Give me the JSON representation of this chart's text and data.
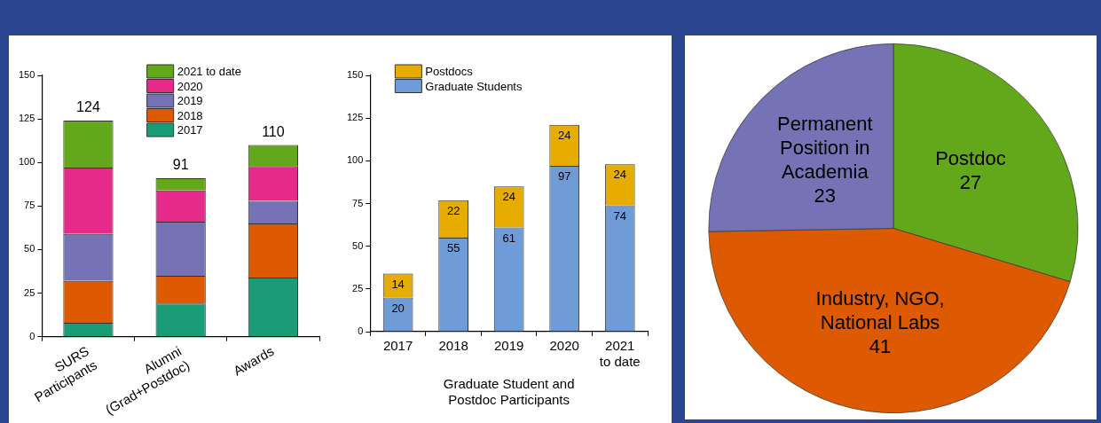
{
  "chart_data": [
    {
      "type": "bar",
      "stacked": true,
      "categories": [
        "SURS\nParticipants",
        "Alumni\n(Grad+Postdoc)",
        "Awards"
      ],
      "series": [
        {
          "name": "2017",
          "color": "#1a9c77",
          "values": [
            8,
            19,
            34
          ]
        },
        {
          "name": "2018",
          "color": "#dd5a00",
          "values": [
            24,
            16,
            31
          ]
        },
        {
          "name": "2019",
          "color": "#7573b5",
          "values": [
            27,
            31,
            13
          ]
        },
        {
          "name": "2020",
          "color": "#e52a8a",
          "values": [
            38,
            18,
            20
          ]
        },
        {
          "name": "2021 to date",
          "color": "#62a81a",
          "values": [
            27,
            7,
            12
          ]
        }
      ],
      "totals": [
        "124",
        "91",
        "110"
      ],
      "ylim": [
        0,
        150
      ],
      "yticks": [
        0,
        25,
        50,
        75,
        100,
        125,
        150
      ],
      "grid": false,
      "legend": "top"
    },
    {
      "type": "bar",
      "stacked": true,
      "categories": [
        "2017",
        "2018",
        "2019",
        "2020",
        "2021\nto date"
      ],
      "xlabel": "Graduate Student and\nPostdoc Participants",
      "series": [
        {
          "name": "Graduate Students",
          "color": "#6f9bd6",
          "values": [
            20,
            55,
            61,
            97,
            74
          ]
        },
        {
          "name": "Postdocs",
          "color": "#e6ac00",
          "values": [
            14,
            22,
            24,
            24,
            24
          ]
        }
      ],
      "data_labels": true,
      "ylim": [
        0,
        150
      ],
      "yticks": [
        0,
        25,
        50,
        75,
        100,
        125,
        150
      ],
      "grid": false,
      "legend": "top left"
    },
    {
      "type": "pie",
      "categories": [
        "Postdoc",
        "Industry, NGO,\nNational Labs",
        "Permanent\nPosition in\nAcademia"
      ],
      "values": [
        27,
        41,
        23
      ],
      "colors": [
        "#62a81a",
        "#dd5a00",
        "#7573b5"
      ],
      "data_labels": true,
      "legend": false
    }
  ]
}
